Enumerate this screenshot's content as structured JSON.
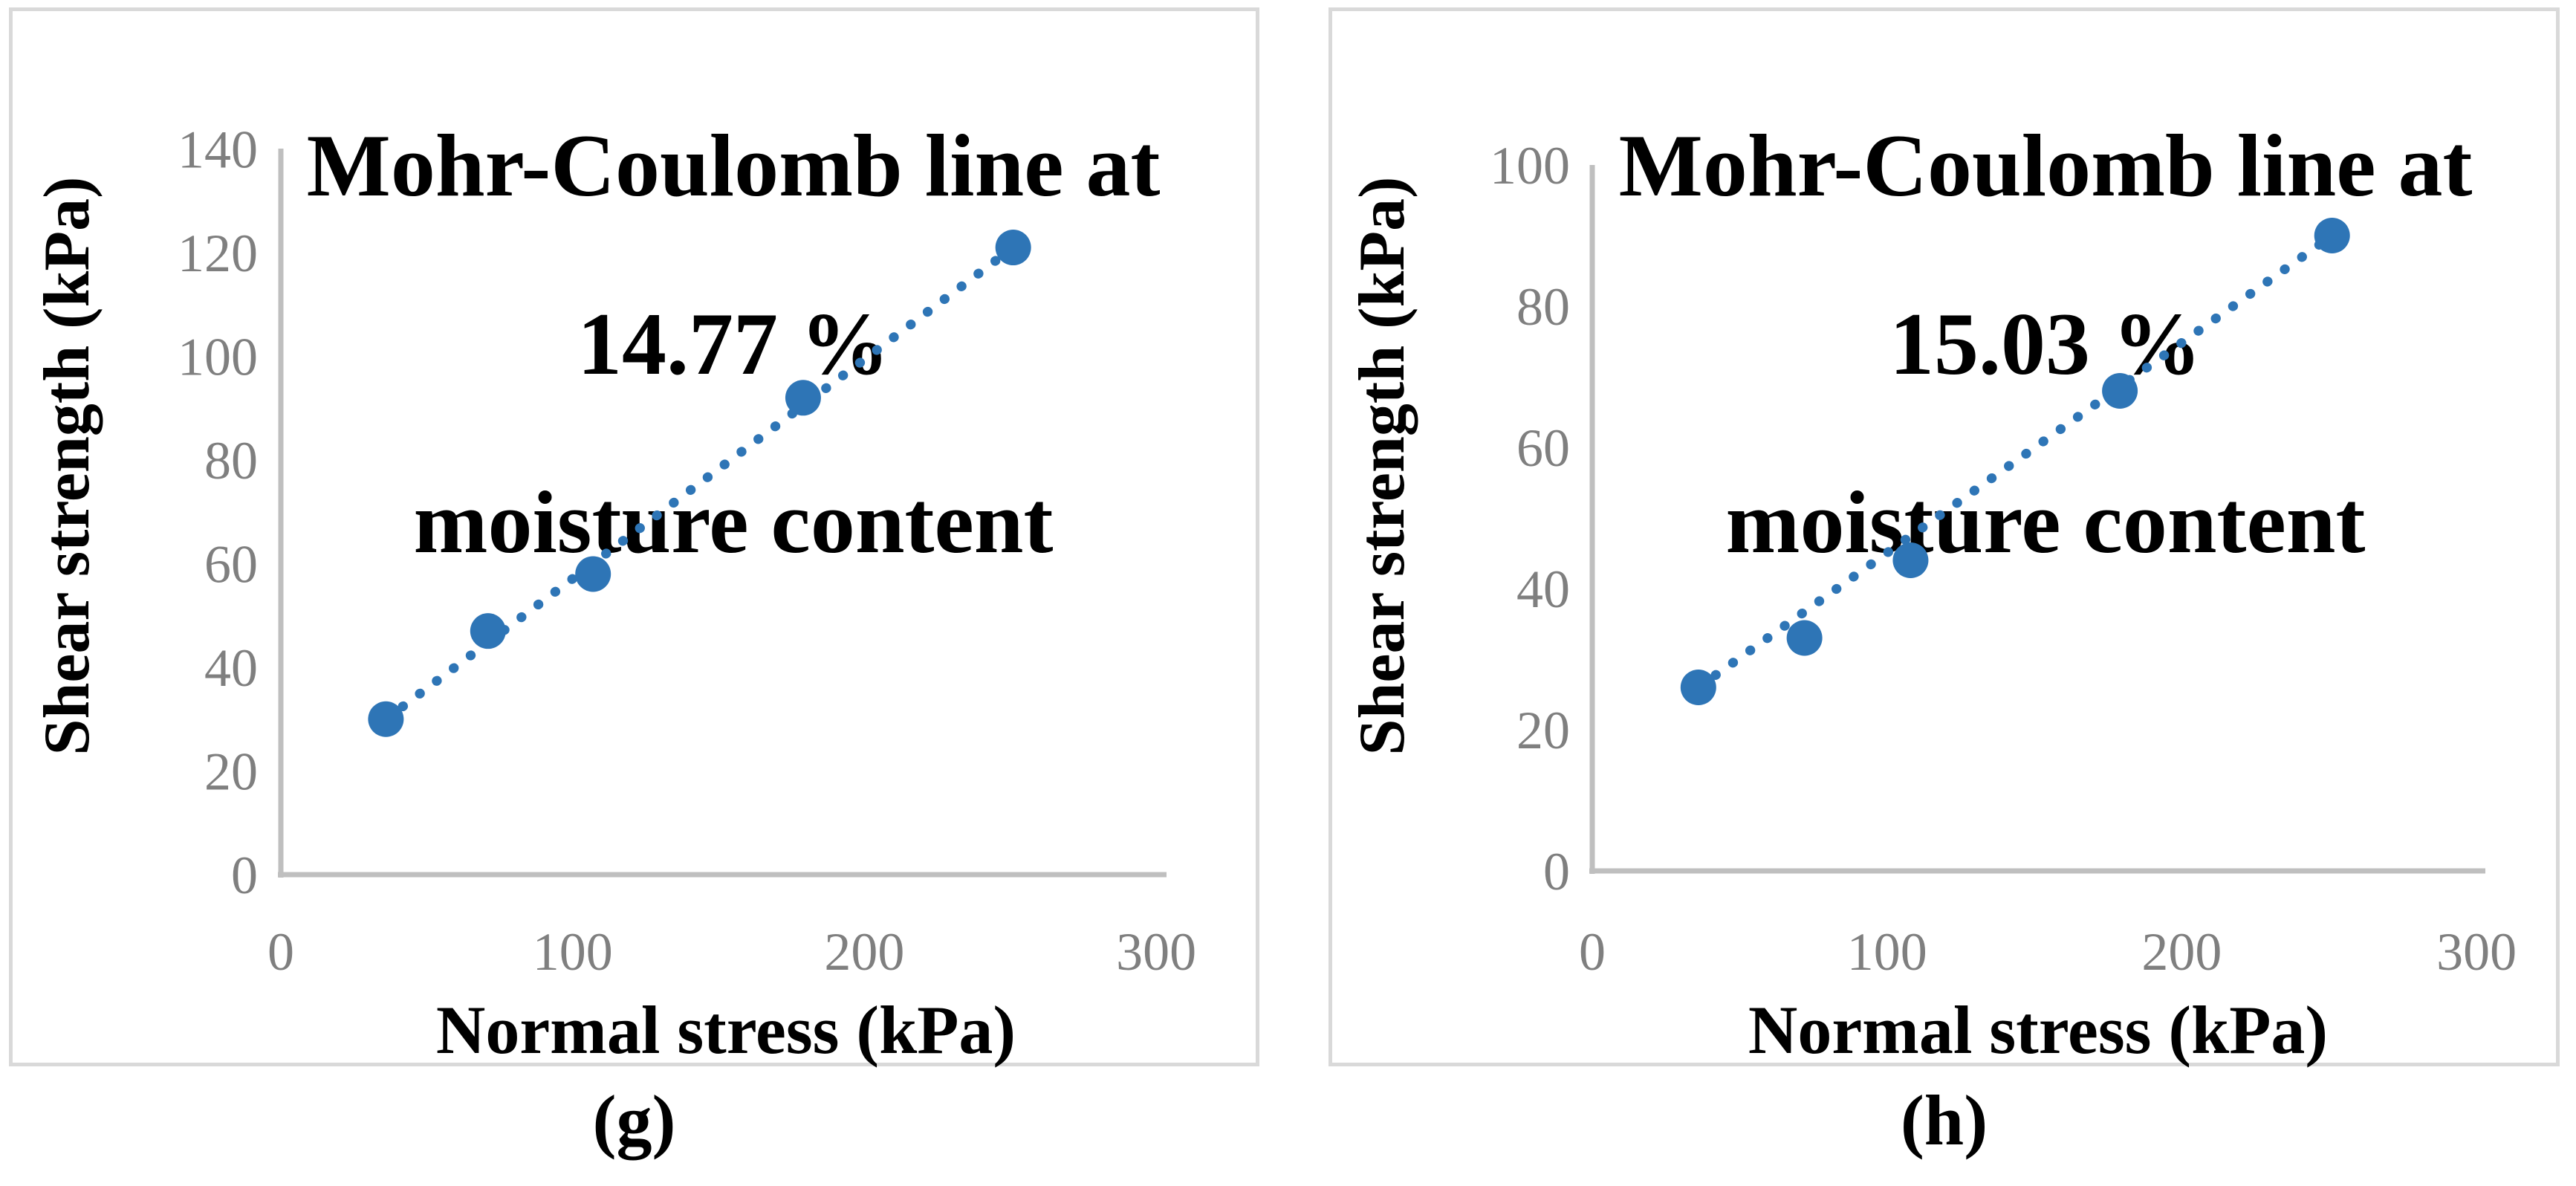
{
  "colors": {
    "marker_blue": "#2E75B6",
    "axis_gray": "#BFBFBF",
    "tick_text_gray": "#7F7F7F",
    "label_text": "#000000",
    "panel_border": "#D9D9D9"
  },
  "captions": {
    "g": "(g)",
    "h": "(h)"
  },
  "chart_data": [
    {
      "id": "g",
      "type": "scatter",
      "title": "Mohr-Coulomb line at 14.77 % moisture content",
      "title_lines": [
        "Mohr-Coulomb line at 14.77 %",
        "moisture content"
      ],
      "xlabel": "Normal stress (kPa)",
      "ylabel": "Shear strength (kPa)",
      "x": [
        36,
        71,
        107,
        179,
        251
      ],
      "y": [
        30,
        47,
        58,
        92,
        121
      ],
      "xticks": [
        0,
        100,
        200,
        300
      ],
      "yticks": [
        0,
        20,
        40,
        60,
        80,
        100,
        120,
        140
      ],
      "xlim": [
        0,
        303
      ],
      "ylim": [
        0,
        140
      ],
      "grid": false,
      "legend": "none",
      "trendline": {
        "style": "dotted",
        "from": [
          36,
          30
        ],
        "to": [
          251,
          121
        ]
      },
      "caption": "(g)"
    },
    {
      "id": "h",
      "type": "scatter",
      "title": "Mohr-Coulomb line at 15.03 % moisture content",
      "title_lines": [
        "Mohr-Coulomb line at 15.03 %",
        "moisture content"
      ],
      "xlabel": "Normal stress (kPa)",
      "ylabel": "Shear strength (kPa)",
      "x": [
        36,
        72,
        108,
        179,
        251
      ],
      "y": [
        26,
        33,
        44,
        68,
        90
      ],
      "xticks": [
        0,
        100,
        200,
        300
      ],
      "yticks": [
        0,
        20,
        40,
        60,
        80,
        100
      ],
      "xlim": [
        0,
        303
      ],
      "ylim": [
        0,
        100
      ],
      "grid": false,
      "legend": "none",
      "trendline": {
        "style": "dotted",
        "from": [
          36,
          26
        ],
        "to": [
          251,
          90
        ]
      },
      "caption": "(h)"
    }
  ]
}
